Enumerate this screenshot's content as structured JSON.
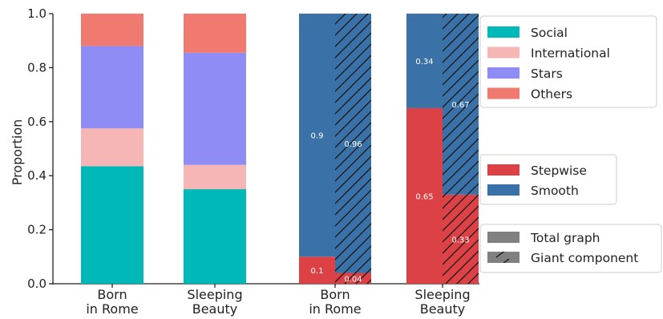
{
  "chart_data": {
    "type": "bar",
    "ylabel": "Proportion",
    "ylim": [
      0,
      1.0
    ],
    "yticks": [
      "0.0",
      "0.2",
      "0.4",
      "0.6",
      "0.8",
      "1.0"
    ],
    "colors": {
      "Social": "#00b8b8",
      "International": "#f7b6b6",
      "Stars": "#8f8cf6",
      "Others": "#f07a70",
      "Stepwise": "#dc4245",
      "Smooth": "#3a72a8"
    },
    "left_panel": {
      "stacked": true,
      "categories": [
        [
          "Born",
          "in Rome"
        ],
        [
          "Sleeping",
          "Beauty"
        ]
      ],
      "series": [
        {
          "name": "Social",
          "values": [
            0.435,
            0.35
          ]
        },
        {
          "name": "International",
          "values": [
            0.14,
            0.09
          ]
        },
        {
          "name": "Stars",
          "values": [
            0.305,
            0.415
          ]
        },
        {
          "name": "Others",
          "values": [
            0.12,
            0.145
          ]
        }
      ]
    },
    "right_panel": {
      "stacked": true,
      "categories": [
        [
          "Born",
          "in Rome"
        ],
        [
          "Sleeping",
          "Beauty"
        ]
      ],
      "groups": [
        {
          "name": "Total graph",
          "Stepwise": [
            0.1,
            0.65
          ],
          "Smooth": [
            0.9,
            0.34
          ],
          "labels_stepwise": [
            "0.1",
            "0.65"
          ],
          "labels_smooth": [
            "0.9",
            "0.34"
          ]
        },
        {
          "name": "Giant component",
          "Stepwise": [
            0.04,
            0.33
          ],
          "Smooth": [
            0.96,
            0.67
          ],
          "labels_stepwise": [
            "0.04",
            "0.33"
          ],
          "labels_smooth": [
            "0.96",
            "0.67"
          ]
        }
      ]
    },
    "legends": {
      "categories": [
        "Social",
        "International",
        "Stars",
        "Others"
      ],
      "types": [
        "Stepwise",
        "Smooth"
      ],
      "graph": [
        "Total graph",
        "Giant component"
      ]
    }
  }
}
